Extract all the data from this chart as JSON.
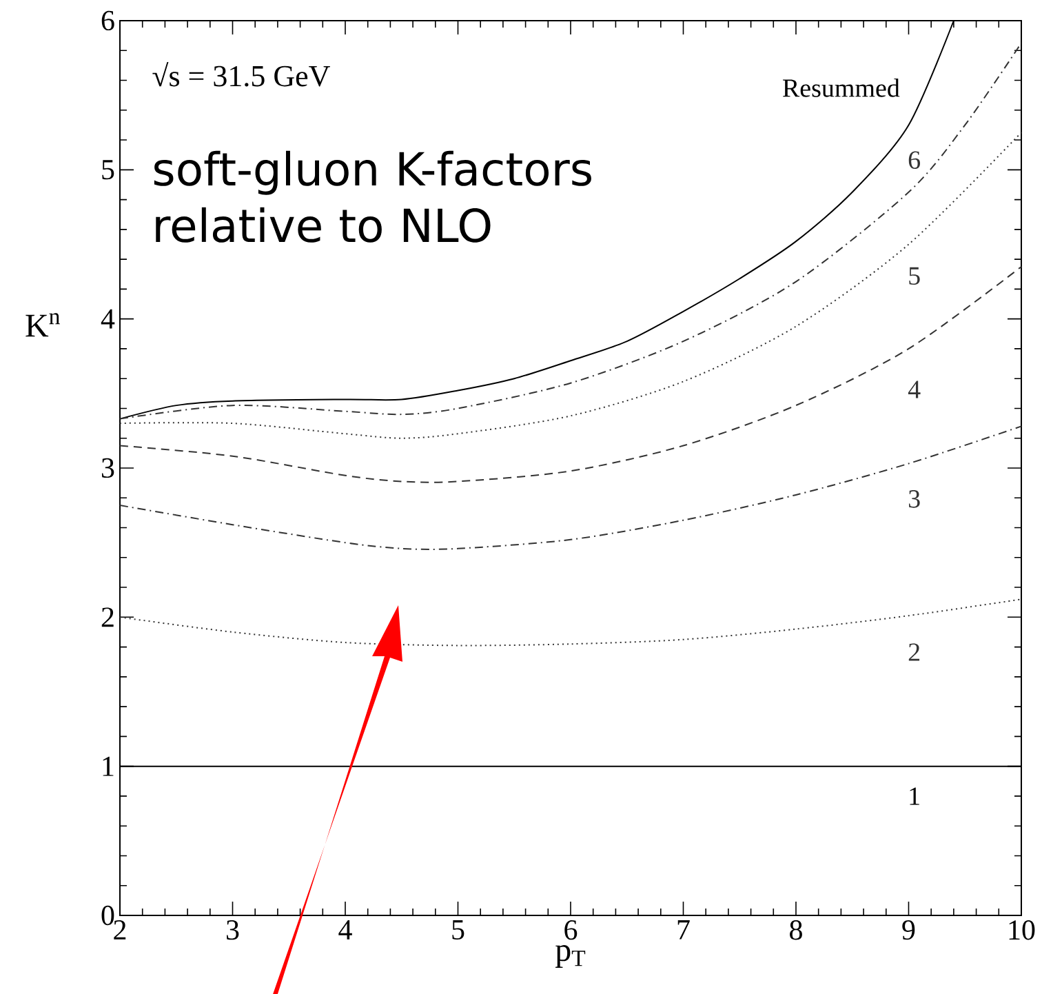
{
  "chart_data": {
    "type": "line",
    "xlabel": "p$_{T}$",
    "ylabel": "K$^{n}$",
    "annotations": [
      "√s = 31.5 GeV",
      "soft-gluon K-factors relative to NLO"
    ],
    "xlim": [
      2,
      10
    ],
    "ylim": [
      0,
      6
    ],
    "xticks": [
      2,
      3,
      4,
      5,
      6,
      7,
      8,
      9,
      10
    ],
    "yticks": [
      0,
      1,
      2,
      3,
      4,
      5,
      6
    ],
    "grid": false,
    "marker": "none",
    "series": [
      {
        "name": "Resummed",
        "color": "#000000",
        "line_style": "solid",
        "x": [
          2,
          2.5,
          3,
          4,
          4.5,
          5,
          5.5,
          6,
          6.5,
          7,
          7.5,
          8,
          8.5,
          9,
          9.4
        ],
        "values": [
          3.33,
          3.42,
          3.45,
          3.46,
          3.46,
          3.52,
          3.6,
          3.72,
          3.85,
          4.05,
          4.27,
          4.52,
          4.85,
          5.3,
          6.0
        ]
      },
      {
        "name": "6",
        "color": "#333333",
        "line_style": "dashdot",
        "x": [
          2,
          3,
          4,
          4.5,
          5,
          6,
          7,
          8,
          9,
          9.5,
          10
        ],
        "values": [
          3.33,
          3.42,
          3.38,
          3.36,
          3.4,
          3.57,
          3.85,
          4.25,
          4.85,
          5.3,
          5.85
        ]
      },
      {
        "name": "5",
        "color": "#333333",
        "line_style": "dotted",
        "x": [
          2,
          3,
          4,
          4.5,
          5,
          6,
          7,
          8,
          9,
          10
        ],
        "values": [
          3.3,
          3.3,
          3.23,
          3.2,
          3.23,
          3.35,
          3.58,
          3.95,
          4.5,
          5.25
        ]
      },
      {
        "name": "4",
        "color": "#333333",
        "line_style": "dashed",
        "x": [
          2,
          3,
          4,
          4.5,
          5,
          6,
          7,
          8,
          9,
          10
        ],
        "values": [
          3.15,
          3.08,
          2.95,
          2.91,
          2.91,
          2.98,
          3.15,
          3.42,
          3.8,
          4.35
        ]
      },
      {
        "name": "3",
        "color": "#333333",
        "line_style": "dashdot",
        "x": [
          2,
          3,
          4,
          4.5,
          5,
          6,
          7,
          8,
          9,
          10
        ],
        "values": [
          2.75,
          2.62,
          2.5,
          2.46,
          2.46,
          2.52,
          2.65,
          2.82,
          3.03,
          3.28
        ]
      },
      {
        "name": "2",
        "color": "#333333",
        "line_style": "dotted",
        "x": [
          2,
          3,
          4,
          5,
          6,
          7,
          8,
          9,
          10
        ],
        "values": [
          2.0,
          1.9,
          1.83,
          1.81,
          1.82,
          1.85,
          1.92,
          2.01,
          2.12
        ]
      },
      {
        "name": "1",
        "color": "#000000",
        "line_style": "solid",
        "x": [
          2,
          10
        ],
        "values": [
          1,
          1
        ]
      }
    ]
  }
}
